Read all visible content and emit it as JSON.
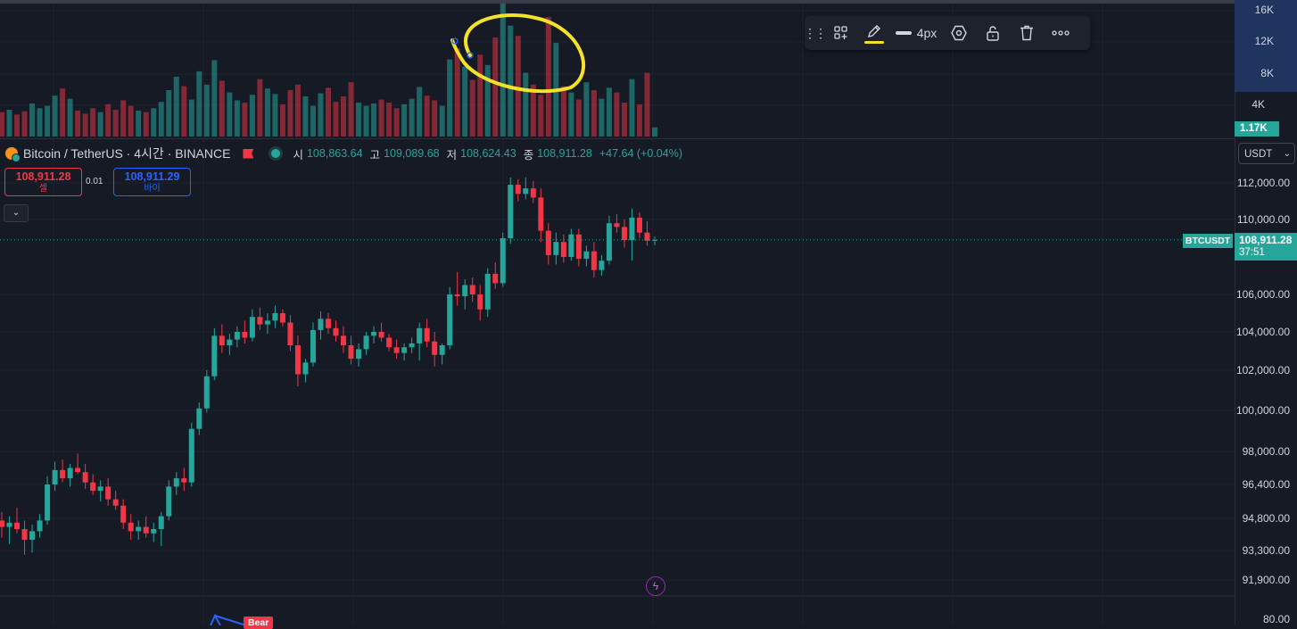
{
  "legend": {
    "symbol": "Bitcoin / TetherUS · 4시간 · BINANCE",
    "ohlc": [
      {
        "key": "시",
        "value": "108,863.64"
      },
      {
        "key": "고",
        "value": "109,089.68"
      },
      {
        "key": "저",
        "value": "108,624.43"
      },
      {
        "key": "종",
        "value": "108,911.28"
      }
    ],
    "change": "+47.64 (+0.04%)"
  },
  "trade": {
    "sell_price": "108,911.28",
    "sell_label": "셀",
    "buy_price": "108,911.29",
    "buy_label": "바이",
    "spread": "0.01",
    "collapse_icon": "⌄"
  },
  "toolbar": {
    "grip_icon": "drag-handle-icon",
    "width_label": "4px",
    "icons": [
      "template-icon",
      "pencil-icon",
      "line-width-icon",
      "settings-hexagon-icon",
      "unlock-icon",
      "trash-icon",
      "more-icon"
    ]
  },
  "volume_axis": {
    "labels": [
      "16K",
      "12K",
      "8K",
      "4K"
    ],
    "badge": "1.17K"
  },
  "currency_selector": "USDT",
  "price_axis": {
    "labels": [
      "112,000.00",
      "110,000.00",
      "106,000.00",
      "104,000.00",
      "102,000.00",
      "100,000.00",
      "98,000.00",
      "96,400.00",
      "94,800.00",
      "93,300.00",
      "91,900.00",
      "80.00"
    ]
  },
  "last_price": {
    "symbol": "BTCUSDT",
    "price": "108,911.28",
    "countdown": "37:51"
  },
  "indicator_label": "Bear",
  "colors": {
    "up": "#26a69a",
    "down": "#f23645",
    "background": "#161a25",
    "grid": "#1f2330",
    "highlight": "#f4e12c",
    "buy": "#2962ff"
  },
  "chart_data": {
    "type": "candlestick",
    "price_ticks": [
      112000,
      110000,
      106000,
      104000,
      102000,
      100000,
      98000,
      96400,
      94800,
      93300,
      91900
    ],
    "last_close": 108911.28,
    "candles": [
      {
        "o": 94700,
        "h": 95100,
        "l": 93900,
        "c": 94400
      },
      {
        "o": 94400,
        "h": 94900,
        "l": 93600,
        "c": 94600
      },
      {
        "o": 94600,
        "h": 95300,
        "l": 94100,
        "c": 94300
      },
      {
        "o": 94300,
        "h": 94700,
        "l": 93100,
        "c": 93800
      },
      {
        "o": 93800,
        "h": 94500,
        "l": 93200,
        "c": 94200
      },
      {
        "o": 94200,
        "h": 95000,
        "l": 93900,
        "c": 94700
      },
      {
        "o": 94700,
        "h": 96800,
        "l": 94500,
        "c": 96400
      },
      {
        "o": 96400,
        "h": 97500,
        "l": 96100,
        "c": 97100
      },
      {
        "o": 97100,
        "h": 97600,
        "l": 96500,
        "c": 96700
      },
      {
        "o": 96700,
        "h": 97400,
        "l": 96300,
        "c": 97200
      },
      {
        "o": 97200,
        "h": 97900,
        "l": 96900,
        "c": 97000
      },
      {
        "o": 97000,
        "h": 97400,
        "l": 96200,
        "c": 96500
      },
      {
        "o": 96500,
        "h": 96900,
        "l": 95900,
        "c": 96100
      },
      {
        "o": 96100,
        "h": 96600,
        "l": 95600,
        "c": 96300
      },
      {
        "o": 96300,
        "h": 96700,
        "l": 95400,
        "c": 95700
      },
      {
        "o": 95700,
        "h": 96100,
        "l": 95200,
        "c": 95400
      },
      {
        "o": 95400,
        "h": 95700,
        "l": 94300,
        "c": 94600
      },
      {
        "o": 94600,
        "h": 95000,
        "l": 93800,
        "c": 94200
      },
      {
        "o": 94200,
        "h": 94700,
        "l": 93800,
        "c": 94400
      },
      {
        "o": 94400,
        "h": 94900,
        "l": 93900,
        "c": 94100
      },
      {
        "o": 94100,
        "h": 94600,
        "l": 93700,
        "c": 94300
      },
      {
        "o": 94300,
        "h": 95100,
        "l": 93500,
        "c": 94900
      },
      {
        "o": 94900,
        "h": 96600,
        "l": 94700,
        "c": 96300
      },
      {
        "o": 96300,
        "h": 97000,
        "l": 95900,
        "c": 96700
      },
      {
        "o": 96700,
        "h": 97200,
        "l": 96100,
        "c": 96500
      },
      {
        "o": 96500,
        "h": 99400,
        "l": 96300,
        "c": 99100
      },
      {
        "o": 99100,
        "h": 100400,
        "l": 98800,
        "c": 100100
      },
      {
        "o": 100100,
        "h": 102000,
        "l": 99900,
        "c": 101700
      },
      {
        "o": 101700,
        "h": 104200,
        "l": 101500,
        "c": 103800
      },
      {
        "o": 103800,
        "h": 104400,
        "l": 102900,
        "c": 103300
      },
      {
        "o": 103300,
        "h": 103900,
        "l": 102800,
        "c": 103600
      },
      {
        "o": 103600,
        "h": 104300,
        "l": 103200,
        "c": 104000
      },
      {
        "o": 104000,
        "h": 104600,
        "l": 103400,
        "c": 103700
      },
      {
        "o": 103700,
        "h": 105200,
        "l": 103500,
        "c": 104800
      },
      {
        "o": 104800,
        "h": 105300,
        "l": 104100,
        "c": 104400
      },
      {
        "o": 104400,
        "h": 105000,
        "l": 103900,
        "c": 104600
      },
      {
        "o": 104600,
        "h": 105400,
        "l": 104200,
        "c": 105000
      },
      {
        "o": 105000,
        "h": 105200,
        "l": 104300,
        "c": 104500
      },
      {
        "o": 104500,
        "h": 104900,
        "l": 103000,
        "c": 103300
      },
      {
        "o": 103300,
        "h": 103800,
        "l": 101200,
        "c": 101800
      },
      {
        "o": 101800,
        "h": 102600,
        "l": 101400,
        "c": 102400
      },
      {
        "o": 102400,
        "h": 104500,
        "l": 102200,
        "c": 104100
      },
      {
        "o": 104100,
        "h": 105100,
        "l": 103600,
        "c": 104700
      },
      {
        "o": 104700,
        "h": 105000,
        "l": 103900,
        "c": 104200
      },
      {
        "o": 104200,
        "h": 104600,
        "l": 103500,
        "c": 103800
      },
      {
        "o": 103800,
        "h": 104300,
        "l": 102900,
        "c": 103300
      },
      {
        "o": 103300,
        "h": 103800,
        "l": 102300,
        "c": 102600
      },
      {
        "o": 102600,
        "h": 103400,
        "l": 102200,
        "c": 103100
      },
      {
        "o": 103100,
        "h": 104000,
        "l": 102800,
        "c": 103800
      },
      {
        "o": 103800,
        "h": 104300,
        "l": 103400,
        "c": 104000
      },
      {
        "o": 104000,
        "h": 104500,
        "l": 103500,
        "c": 103700
      },
      {
        "o": 103700,
        "h": 103900,
        "l": 103000,
        "c": 103200
      },
      {
        "o": 103200,
        "h": 103600,
        "l": 102600,
        "c": 102900
      },
      {
        "o": 102900,
        "h": 103400,
        "l": 102500,
        "c": 103200
      },
      {
        "o": 103200,
        "h": 103700,
        "l": 102900,
        "c": 103400
      },
      {
        "o": 103400,
        "h": 104500,
        "l": 102500,
        "c": 104200
      },
      {
        "o": 104200,
        "h": 104700,
        "l": 103200,
        "c": 103500
      },
      {
        "o": 103500,
        "h": 104000,
        "l": 102200,
        "c": 102800
      },
      {
        "o": 102800,
        "h": 103400,
        "l": 102300,
        "c": 103300
      },
      {
        "o": 103300,
        "h": 106400,
        "l": 103100,
        "c": 106000
      },
      {
        "o": 106000,
        "h": 107200,
        "l": 105400,
        "c": 105900
      },
      {
        "o": 105900,
        "h": 106800,
        "l": 105200,
        "c": 106500
      },
      {
        "o": 106500,
        "h": 106900,
        "l": 105600,
        "c": 106000
      },
      {
        "o": 106000,
        "h": 106500,
        "l": 104600,
        "c": 105200
      },
      {
        "o": 105200,
        "h": 107400,
        "l": 104800,
        "c": 107100
      },
      {
        "o": 107100,
        "h": 107700,
        "l": 106300,
        "c": 106600
      },
      {
        "o": 106600,
        "h": 109300,
        "l": 106400,
        "c": 109000
      },
      {
        "o": 109000,
        "h": 112300,
        "l": 108700,
        "c": 111900
      },
      {
        "o": 111900,
        "h": 112200,
        "l": 111000,
        "c": 111400
      },
      {
        "o": 111400,
        "h": 112300,
        "l": 111100,
        "c": 111700
      },
      {
        "o": 111700,
        "h": 112100,
        "l": 110900,
        "c": 111200
      },
      {
        "o": 111200,
        "h": 111700,
        "l": 108800,
        "c": 109400
      },
      {
        "o": 109400,
        "h": 109800,
        "l": 107600,
        "c": 108100
      },
      {
        "o": 108100,
        "h": 109300,
        "l": 107600,
        "c": 108800
      },
      {
        "o": 108800,
        "h": 109200,
        "l": 107700,
        "c": 108000
      },
      {
        "o": 108000,
        "h": 109500,
        "l": 107800,
        "c": 109200
      },
      {
        "o": 109200,
        "h": 109500,
        "l": 107500,
        "c": 107900
      },
      {
        "o": 107900,
        "h": 108600,
        "l": 107500,
        "c": 108300
      },
      {
        "o": 108300,
        "h": 108800,
        "l": 106900,
        "c": 107300
      },
      {
        "o": 107300,
        "h": 108100,
        "l": 107000,
        "c": 107800
      },
      {
        "o": 107800,
        "h": 110200,
        "l": 107600,
        "c": 109800
      },
      {
        "o": 109800,
        "h": 110300,
        "l": 109300,
        "c": 109600
      },
      {
        "o": 109600,
        "h": 110000,
        "l": 108500,
        "c": 108900
      },
      {
        "o": 108900,
        "h": 110600,
        "l": 107800,
        "c": 110100
      },
      {
        "o": 110100,
        "h": 110400,
        "l": 109000,
        "c": 109300
      },
      {
        "o": 109300,
        "h": 109900,
        "l": 108600,
        "c": 108864
      },
      {
        "o": 108864,
        "h": 109090,
        "l": 108624,
        "c": 108911
      }
    ],
    "volume_axis_ticks": [
      16000,
      12000,
      8000,
      4000
    ],
    "last_volume": 1170,
    "volumes": [
      3100,
      3400,
      2800,
      3200,
      4200,
      3600,
      3900,
      5200,
      6100,
      4800,
      3300,
      2900,
      3600,
      3100,
      4100,
      3400,
      4600,
      3900,
      3300,
      3100,
      3600,
      4400,
      5900,
      7600,
      6400,
      4700,
      8300,
      6600,
      9700,
      7100,
      5600,
      4600,
      4300,
      5300,
      7300,
      6100,
      5400,
      4100,
      5900,
      6600,
      5100,
      3900,
      5500,
      6200,
      4400,
      5100,
      6900,
      4300,
      3900,
      4200,
      4700,
      4300,
      3600,
      4100,
      4800,
      6300,
      5200,
      4600,
      3900,
      9800,
      11200,
      8900,
      7200,
      10400,
      9100,
      12600,
      17600,
      14100,
      12800,
      8100,
      6600,
      5300,
      15200,
      11900,
      6400,
      5600,
      4700,
      6900,
      5900,
      4800,
      6200,
      5600,
      4300,
      7300,
      4100,
      8100,
      1170
    ],
    "volume_colors": "up/down per candle"
  }
}
